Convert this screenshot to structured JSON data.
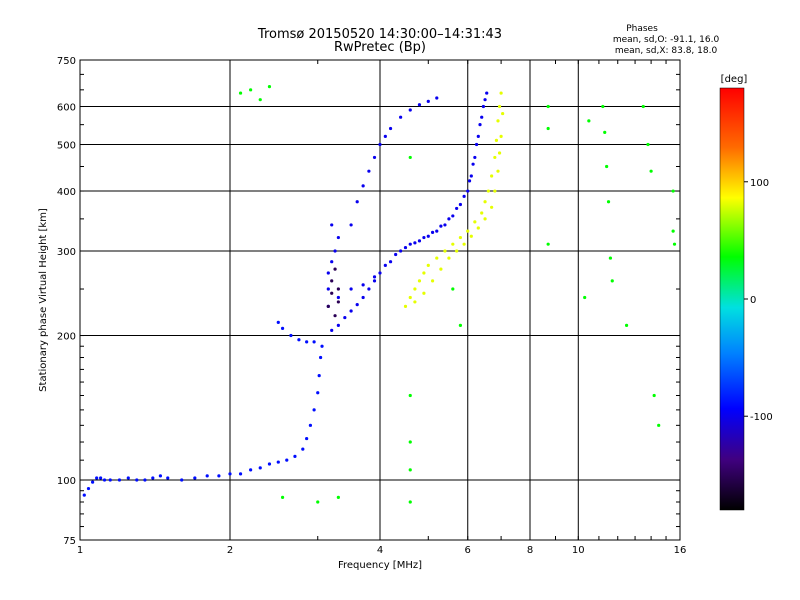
{
  "chart_data": {
    "type": "scatter",
    "title": "Tromsø 20150520 14:30:00–14:31:43",
    "subtitle": "RwPretec (Bp)",
    "xlabel": "Frequency [MHz]",
    "ylabel": "Stationary phase Virtual Height [km]",
    "x_scale": "log",
    "y_scale": "log",
    "xlim": [
      1,
      16
    ],
    "ylim": [
      75,
      750
    ],
    "x_ticks": [
      1,
      2,
      4,
      6,
      8,
      10,
      16
    ],
    "y_ticks": [
      75,
      100,
      200,
      300,
      400,
      500,
      600,
      750
    ],
    "grid": true,
    "phase_stats": {
      "heading": "Phases",
      "line_o": "mean, sd,O: -91.1, 16.0",
      "line_x": "mean, sd,X:  83.8, 18.0"
    },
    "colorbar": {
      "label": "[deg]",
      "ticks": [
        100,
        0,
        -100
      ],
      "range": [
        -180,
        180
      ]
    },
    "series": [
      {
        "points": [
          [
            1.02,
            93
          ],
          [
            1.04,
            96
          ],
          [
            1.06,
            99
          ],
          [
            1.08,
            101
          ],
          [
            1.1,
            101
          ],
          [
            1.12,
            100
          ],
          [
            1.15,
            100
          ],
          [
            1.2,
            100
          ],
          [
            1.25,
            101
          ],
          [
            1.3,
            100
          ],
          [
            1.35,
            100
          ],
          [
            1.4,
            101
          ],
          [
            1.45,
            102
          ],
          [
            1.5,
            101
          ],
          [
            1.6,
            100
          ],
          [
            1.7,
            101
          ],
          [
            1.8,
            102
          ],
          [
            1.9,
            102
          ],
          [
            2.0,
            103
          ],
          [
            2.1,
            103
          ],
          [
            2.2,
            105
          ],
          [
            2.3,
            106
          ],
          [
            2.4,
            108
          ],
          [
            2.5,
            109
          ],
          [
            2.6,
            110
          ],
          [
            2.7,
            112
          ],
          [
            2.8,
            116
          ],
          [
            2.85,
            122
          ],
          [
            2.9,
            130
          ],
          [
            2.95,
            140
          ],
          [
            3.0,
            152
          ],
          [
            3.02,
            165
          ],
          [
            3.04,
            180
          ],
          [
            3.06,
            190
          ],
          [
            2.95,
            194
          ],
          [
            2.85,
            194
          ],
          [
            2.75,
            196
          ],
          [
            2.65,
            200
          ],
          [
            2.55,
            207
          ],
          [
            2.5,
            213
          ]
        ],
        "phase": -90
      },
      {
        "points": [
          [
            3.2,
            205
          ],
          [
            3.3,
            210
          ],
          [
            3.4,
            218
          ],
          [
            3.5,
            225
          ],
          [
            3.6,
            232
          ],
          [
            3.7,
            240
          ],
          [
            3.8,
            250
          ],
          [
            3.9,
            260
          ],
          [
            4.0,
            270
          ],
          [
            4.2,
            285
          ],
          [
            4.4,
            300
          ],
          [
            4.6,
            310
          ],
          [
            4.8,
            315
          ],
          [
            5.0,
            322
          ],
          [
            5.2,
            330
          ],
          [
            5.4,
            340
          ],
          [
            5.6,
            355
          ],
          [
            5.8,
            375
          ],
          [
            6.0,
            400
          ],
          [
            6.1,
            430
          ],
          [
            6.2,
            470
          ],
          [
            6.3,
            520
          ],
          [
            6.4,
            570
          ],
          [
            6.5,
            620
          ],
          [
            6.55,
            640
          ],
          [
            3.3,
            240
          ],
          [
            3.5,
            250
          ],
          [
            3.7,
            255
          ],
          [
            3.9,
            265
          ],
          [
            4.1,
            280
          ],
          [
            4.3,
            295
          ],
          [
            4.5,
            305
          ],
          [
            4.7,
            312
          ],
          [
            4.9,
            320
          ],
          [
            5.1,
            328
          ],
          [
            5.3,
            338
          ],
          [
            5.5,
            350
          ],
          [
            5.7,
            368
          ],
          [
            5.9,
            390
          ],
          [
            6.05,
            420
          ],
          [
            6.15,
            455
          ],
          [
            6.25,
            500
          ],
          [
            6.35,
            550
          ],
          [
            6.45,
            600
          ],
          [
            3.15,
            230
          ],
          [
            3.15,
            250
          ],
          [
            3.15,
            270
          ],
          [
            3.2,
            285
          ],
          [
            3.25,
            300
          ],
          [
            3.3,
            320
          ],
          [
            3.2,
            340
          ],
          [
            3.5,
            340
          ],
          [
            3.6,
            380
          ],
          [
            3.7,
            410
          ],
          [
            3.8,
            440
          ],
          [
            3.9,
            470
          ],
          [
            4.0,
            500
          ],
          [
            4.1,
            520
          ],
          [
            4.2,
            540
          ],
          [
            4.4,
            570
          ],
          [
            4.6,
            590
          ],
          [
            4.8,
            605
          ],
          [
            5.0,
            615
          ],
          [
            5.2,
            625
          ]
        ],
        "phase": -100
      },
      {
        "points": [
          [
            4.5,
            230
          ],
          [
            4.6,
            240
          ],
          [
            4.7,
            250
          ],
          [
            4.8,
            260
          ],
          [
            4.9,
            270
          ],
          [
            5.0,
            280
          ],
          [
            5.2,
            290
          ],
          [
            5.4,
            300
          ],
          [
            5.6,
            310
          ],
          [
            5.8,
            320
          ],
          [
            6.0,
            330
          ],
          [
            6.2,
            345
          ],
          [
            6.4,
            360
          ],
          [
            6.5,
            380
          ],
          [
            6.6,
            400
          ],
          [
            6.7,
            430
          ],
          [
            6.8,
            470
          ],
          [
            6.85,
            510
          ],
          [
            6.9,
            560
          ],
          [
            6.95,
            600
          ],
          [
            7.0,
            640
          ],
          [
            4.7,
            235
          ],
          [
            4.9,
            245
          ],
          [
            5.1,
            260
          ],
          [
            5.3,
            275
          ],
          [
            5.5,
            290
          ],
          [
            5.7,
            300
          ],
          [
            5.9,
            310
          ],
          [
            6.1,
            322
          ],
          [
            6.3,
            335
          ],
          [
            6.5,
            350
          ],
          [
            6.7,
            370
          ],
          [
            6.8,
            400
          ],
          [
            6.9,
            440
          ],
          [
            6.95,
            480
          ],
          [
            7.0,
            520
          ],
          [
            7.05,
            580
          ]
        ],
        "phase": 85
      },
      {
        "points": [
          [
            3.15,
            230
          ],
          [
            3.2,
            245
          ],
          [
            3.2,
            260
          ],
          [
            3.25,
            275
          ],
          [
            3.3,
            250
          ],
          [
            3.25,
            220
          ],
          [
            3.3,
            235
          ]
        ],
        "phase": -150
      },
      {
        "points": [
          [
            2.1,
            640
          ],
          [
            2.2,
            650
          ],
          [
            2.3,
            620
          ],
          [
            2.4,
            660
          ],
          [
            4.6,
            470
          ],
          [
            4.6,
            150
          ],
          [
            4.6,
            120
          ],
          [
            4.6,
            105
          ],
          [
            4.6,
            90
          ],
          [
            5.6,
            250
          ],
          [
            5.8,
            210
          ],
          [
            8.7,
            600
          ],
          [
            8.7,
            540
          ],
          [
            8.7,
            310
          ],
          [
            10.3,
            240
          ],
          [
            10.5,
            560
          ],
          [
            11.2,
            600
          ],
          [
            11.3,
            530
          ],
          [
            11.4,
            450
          ],
          [
            11.5,
            380
          ],
          [
            11.6,
            290
          ],
          [
            11.7,
            260
          ],
          [
            12.5,
            210
          ],
          [
            13.5,
            600
          ],
          [
            13.8,
            500
          ],
          [
            14.0,
            440
          ],
          [
            14.2,
            150
          ],
          [
            14.5,
            130
          ],
          [
            15.5,
            400
          ],
          [
            15.5,
            330
          ],
          [
            15.6,
            310
          ],
          [
            3.0,
            90
          ],
          [
            2.55,
            92
          ],
          [
            3.3,
            92
          ]
        ],
        "phase": 40
      }
    ]
  }
}
